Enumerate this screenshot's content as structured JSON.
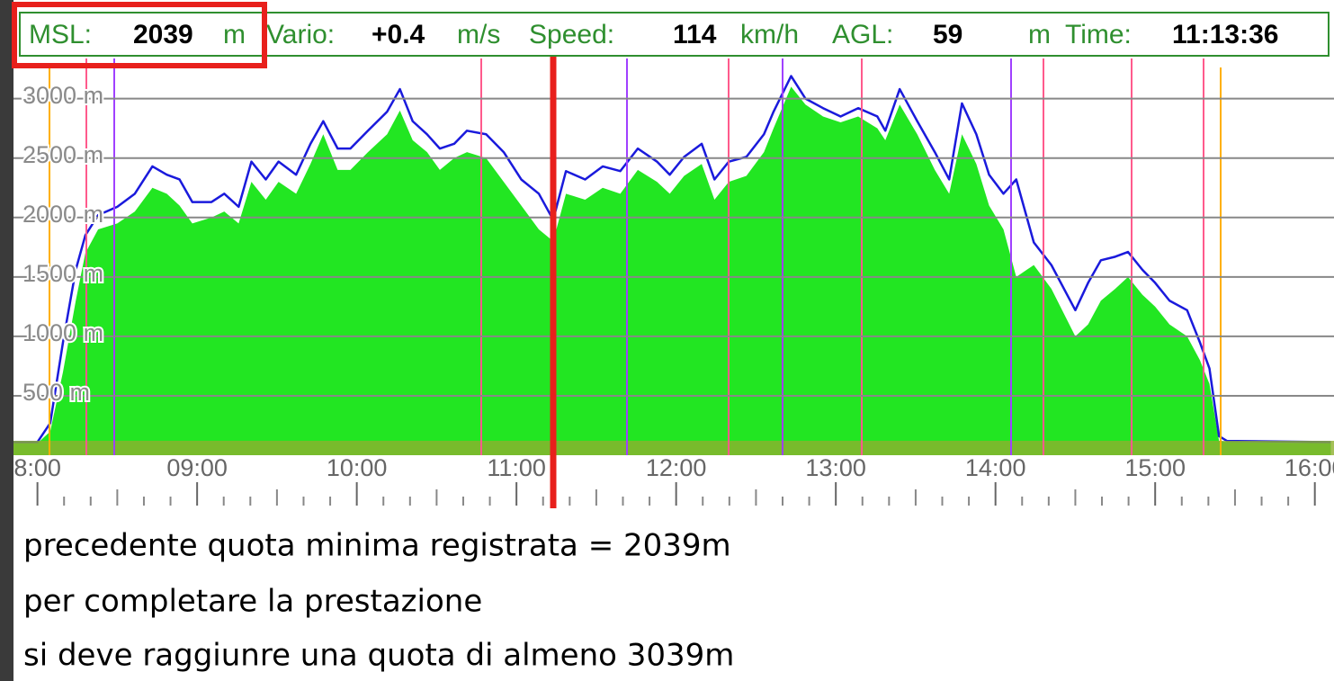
{
  "readout": [
    {
      "label": "MSL:",
      "value": "2039",
      "unit": "m"
    },
    {
      "label": "Vario:",
      "value": "+0.4",
      "unit": "m/s"
    },
    {
      "label": "Speed:",
      "value": "114",
      "unit": "km/h"
    },
    {
      "label": "AGL:",
      "value": "59",
      "unit": "m"
    },
    {
      "label": "Time:",
      "value": "11:13:36"
    }
  ],
  "chart_data": {
    "type": "line",
    "x": [
      7.85,
      8.0,
      8.08,
      8.16,
      8.24,
      8.3,
      8.38,
      8.5,
      8.61,
      8.72,
      8.81,
      8.89,
      8.97,
      9.09,
      9.17,
      9.26,
      9.34,
      9.43,
      9.51,
      9.62,
      9.71,
      9.79,
      9.88,
      9.96,
      10.07,
      10.19,
      10.27,
      10.35,
      10.44,
      10.52,
      10.61,
      10.69,
      10.81,
      10.92,
      11.03,
      11.14,
      11.23,
      11.31,
      11.43,
      11.54,
      11.65,
      11.76,
      11.88,
      11.96,
      12.05,
      12.16,
      12.24,
      12.33,
      12.44,
      12.55,
      12.61,
      12.72,
      12.81,
      12.92,
      13.03,
      13.14,
      13.26,
      13.31,
      13.4,
      13.51,
      13.62,
      13.71,
      13.79,
      13.88,
      13.96,
      14.05,
      14.13,
      14.24,
      14.35,
      14.5,
      14.58,
      14.66,
      14.75,
      14.83,
      14.92,
      15.0,
      15.09,
      15.2,
      15.28,
      15.34,
      15.4,
      15.45,
      16.1
    ],
    "series": [
      {
        "type": "area",
        "color": "#22e622",
        "values": [
          100,
          100,
          200,
          700,
          1300,
          1700,
          1900,
          1950,
          2050,
          2250,
          2200,
          2100,
          1950,
          2000,
          2050,
          1950,
          2300,
          2150,
          2300,
          2200,
          2450,
          2700,
          2400,
          2400,
          2550,
          2700,
          2900,
          2650,
          2550,
          2400,
          2500,
          2550,
          2500,
          2300,
          2100,
          1900,
          1800,
          2200,
          2150,
          2250,
          2200,
          2400,
          2300,
          2200,
          2350,
          2450,
          2150,
          2300,
          2350,
          2550,
          2750,
          3100,
          2950,
          2850,
          2800,
          2850,
          2750,
          2650,
          2950,
          2700,
          2400,
          2200,
          2700,
          2450,
          2100,
          1900,
          1500,
          1600,
          1400,
          1000,
          1100,
          1300,
          1400,
          1500,
          1350,
          1250,
          1100,
          1000,
          800,
          600,
          120,
          110,
          100
        ]
      },
      {
        "type": "line",
        "color": "#1a1adc",
        "values": [
          110,
          110,
          270,
          950,
          1560,
          1850,
          2020,
          2090,
          2200,
          2430,
          2360,
          2320,
          2130,
          2130,
          2200,
          2090,
          2470,
          2320,
          2470,
          2360,
          2620,
          2810,
          2580,
          2580,
          2730,
          2890,
          3080,
          2810,
          2700,
          2580,
          2620,
          2730,
          2700,
          2550,
          2320,
          2200,
          1980,
          2390,
          2320,
          2430,
          2390,
          2580,
          2470,
          2360,
          2510,
          2620,
          2320,
          2470,
          2510,
          2700,
          2890,
          3190,
          3000,
          2920,
          2850,
          2920,
          2850,
          2730,
          3080,
          2810,
          2550,
          2320,
          2960,
          2700,
          2360,
          2200,
          2320,
          1790,
          1600,
          1220,
          1450,
          1640,
          1670,
          1710,
          1560,
          1450,
          1300,
          1220,
          950,
          730,
          160,
          120,
          110
        ]
      }
    ],
    "xlim": [
      7.85,
      16.12
    ],
    "xticks": [
      {
        "value": 8,
        "label": "8:00"
      },
      {
        "value": 9,
        "label": "09:00"
      },
      {
        "value": 10,
        "label": "10:00"
      },
      {
        "value": 11,
        "label": "11:00"
      },
      {
        "value": 12,
        "label": "12:00"
      },
      {
        "value": 13,
        "label": "13:00"
      },
      {
        "value": 14,
        "label": "14:00"
      },
      {
        "value": 15,
        "label": "15:00"
      },
      {
        "value": 16,
        "label": "16:00"
      }
    ],
    "ylim": [
      0,
      3300
    ],
    "yticks": [
      {
        "value": 500,
        "label": "500 m"
      },
      {
        "value": 1000,
        "label": "1000 m"
      },
      {
        "value": 1500,
        "label": "1500 m"
      },
      {
        "value": 2000,
        "label": "2000 m"
      },
      {
        "value": 2500,
        "label": "2500 m"
      },
      {
        "value": 3000,
        "label": "3000 m"
      }
    ],
    "grid": true
  },
  "notes": [
    "precedente quota minima registrata = 2039m",
    "per completare la prestazione",
    "si deve raggiunre una quota di almeno 3039m"
  ]
}
